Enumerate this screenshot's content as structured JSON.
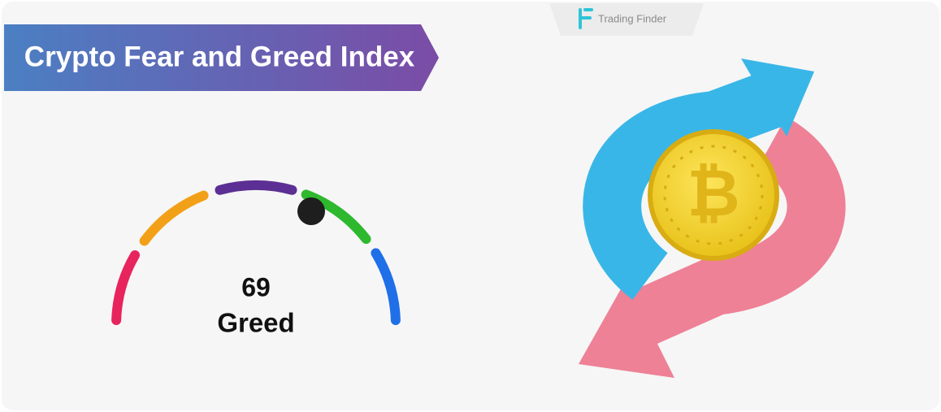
{
  "brand": "Trading Finder",
  "title": "Crypto Fear and Greed Index",
  "gauge": {
    "value": 69,
    "label": "Greed"
  }
}
